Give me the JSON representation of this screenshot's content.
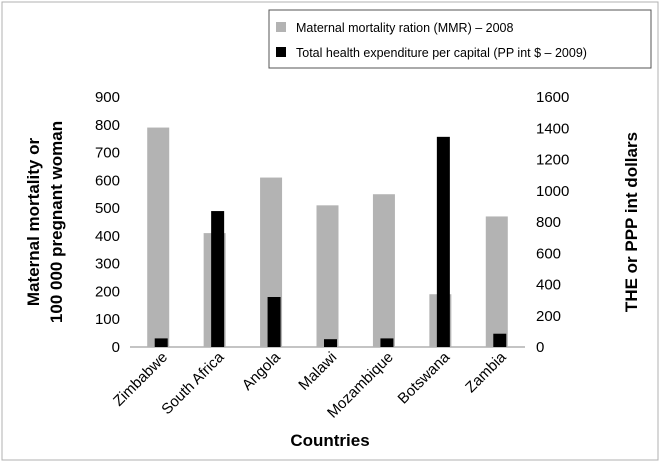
{
  "chart_data": {
    "type": "bar",
    "categories": [
      "Zimbabwe",
      "South Africa",
      "Angola",
      "Malawi",
      "Mozambique",
      "Botswana",
      "Zambia"
    ],
    "series": [
      {
        "name": "Maternal mortality ration (MMR) – 2008",
        "axis": "left",
        "color": "#b3b3b3",
        "values": [
          790,
          410,
          610,
          510,
          550,
          190,
          470
        ]
      },
      {
        "name": "Total health expenditure per capital (PP int $ – 2009)",
        "axis": "right",
        "color": "#000000",
        "values": [
          55,
          870,
          320,
          50,
          55,
          1345,
          85
        ]
      }
    ],
    "xlabel": "Countries",
    "ylabel": "Maternal mortality or 100 000 pregnant woman",
    "ylabel2": "THE or PPP int dollars",
    "ylim": [
      0,
      900
    ],
    "ylim2": [
      0,
      1600
    ],
    "yticks": [
      "0",
      "100",
      "200",
      "300",
      "400",
      "500",
      "600",
      "700",
      "800",
      "900"
    ],
    "yticks2": [
      "0",
      "200",
      "400",
      "600",
      "800",
      "1000",
      "1200",
      "1400",
      "1600"
    ],
    "legend_position": "top-right",
    "grid": false
  }
}
